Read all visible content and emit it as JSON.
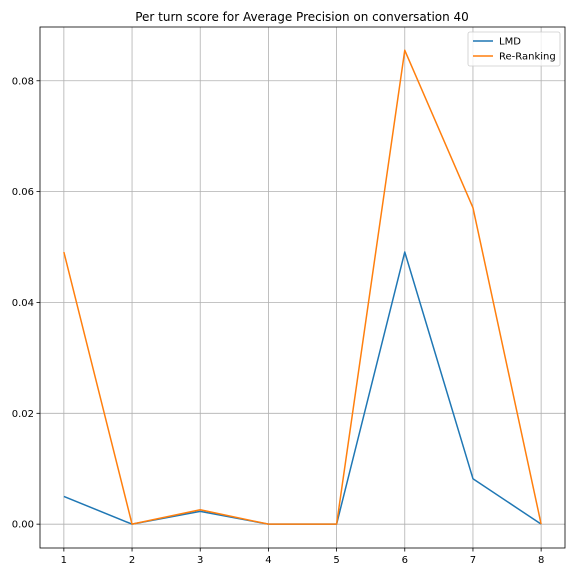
{
  "chart_data": {
    "type": "line",
    "title": "Per turn score for Average Precision on conversation 40",
    "xlabel": "",
    "ylabel": "",
    "x": [
      1,
      2,
      3,
      4,
      5,
      6,
      7,
      8
    ],
    "xticks": [
      "1",
      "2",
      "3",
      "4",
      "5",
      "6",
      "7",
      "8"
    ],
    "xlim": [
      0.65,
      8.35
    ],
    "yticks": [
      "0.00",
      "0.02",
      "0.04",
      "0.06",
      "0.08"
    ],
    "ytick_values": [
      0,
      0.02,
      0.04,
      0.06,
      0.08
    ],
    "ylim": [
      -0.0043,
      0.0897
    ],
    "grid": true,
    "legend_position": "top-right",
    "series": [
      {
        "name": "LMD",
        "color": "#1f77b4",
        "values": [
          0.005,
          0.0,
          0.0023,
          0.0,
          0.0,
          0.0491,
          0.0082,
          0.0
        ]
      },
      {
        "name": "Re-Ranking",
        "color": "#ff7f0e",
        "values": [
          0.0491,
          0.0,
          0.0026,
          0.0,
          0.0,
          0.0855,
          0.0571,
          0.0
        ]
      }
    ]
  }
}
